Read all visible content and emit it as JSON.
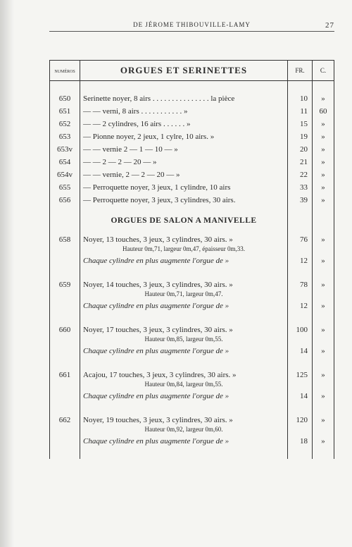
{
  "header": {
    "running_head": "DE JÉROME THIBOUVILLE-LAMY",
    "page_number": "27"
  },
  "columns": {
    "num_label": "numéros",
    "fr_label": "FR.",
    "c_label": "C."
  },
  "title1": "ORGUES ET SERINETTES",
  "section1": [
    {
      "num": "650",
      "desc": "Serinette noyer, 8 airs . . . . . . . . . . . . . . . la pièce",
      "fr": "10",
      "c": "»"
    },
    {
      "num": "651",
      "desc": "—        —   verni, 8 airs . . . . . . . . . . .   »",
      "fr": "11",
      "c": "60"
    },
    {
      "num": "652",
      "desc": "—        —   2 cylindres, 16 airs . . . . . .   »",
      "fr": "15",
      "c": "»"
    },
    {
      "num": "653",
      "desc": "—    Pionne noyer, 2 jeux, 1 cylre, 10 airs.   »",
      "fr": "19",
      "c": "»"
    },
    {
      "num": "653v",
      "desc": "—        — vernie 2  —  1  — 10  —     »",
      "fr": "20",
      "c": "»"
    },
    {
      "num": "654",
      "desc": "—        —           2  —  2  — 20  —     »",
      "fr": "21",
      "c": "»"
    },
    {
      "num": "654v",
      "desc": "—        — vernie, 2  —  2  — 20  —     »",
      "fr": "22",
      "c": "»"
    },
    {
      "num": "655",
      "desc": "—    Perroquette noyer, 3 jeux, 1 cylindre, 10 airs",
      "fr": "33",
      "c": "»"
    },
    {
      "num": "656",
      "desc": "—    Perroquette noyer, 3 jeux, 3 cylindres, 30 airs.",
      "fr": "39",
      "c": "»"
    }
  ],
  "title2": "ORGUES DE SALON A MANIVELLE",
  "section2": [
    {
      "num": "658",
      "desc": "Noyer, 13 touches, 3 jeux, 3 cylindres, 30 airs.    »",
      "sub": "Hauteur 0m,71, largeur 0m,47, épaisseur 0m,33.",
      "aug": "Chaque cylindre en plus augmente l'orgue de     »",
      "fr": "76",
      "c": "»",
      "fr2": "12",
      "c2": "»"
    },
    {
      "num": "659",
      "desc": "Noyer, 14 touches, 3 jeux, 3 cylindres, 30 airs.    »",
      "sub": "Hauteur 0m,71, largeur 0m,47.",
      "aug": "Chaque cylindre en plus augmente l'orgue de     »",
      "fr": "78",
      "c": "»",
      "fr2": "12",
      "c2": "»"
    },
    {
      "num": "660",
      "desc": "Noyer, 17 touches, 3 jeux, 3 cylindres, 30 airs.    »",
      "sub": "Hauteur 0m,85, largeur 0m,55.",
      "aug": "Chaque cylindre en plus augmente l'orgue de     »",
      "fr": "100",
      "c": "»",
      "fr2": "14",
      "c2": "»"
    },
    {
      "num": "661",
      "desc": "Acajou, 17 touches, 3 jeux, 3 cylindres, 30 airs.   »",
      "sub": "Hauteur 0m,84, largeur 0m,55.",
      "aug": "Chaque cylindre en plus augmente l'orgue de     »",
      "fr": "125",
      "c": "»",
      "fr2": "14",
      "c2": "»"
    },
    {
      "num": "662",
      "desc": "Noyer, 19 touches, 3 jeux, 3 cylindres, 30 airs.    »",
      "sub": "Hauteur 0m,92, largeur 0m,60.",
      "aug": "Chaque cylindre en plus augmente l'orgue de     »",
      "fr": "120",
      "c": "»",
      "fr2": "18",
      "c2": "»"
    }
  ]
}
